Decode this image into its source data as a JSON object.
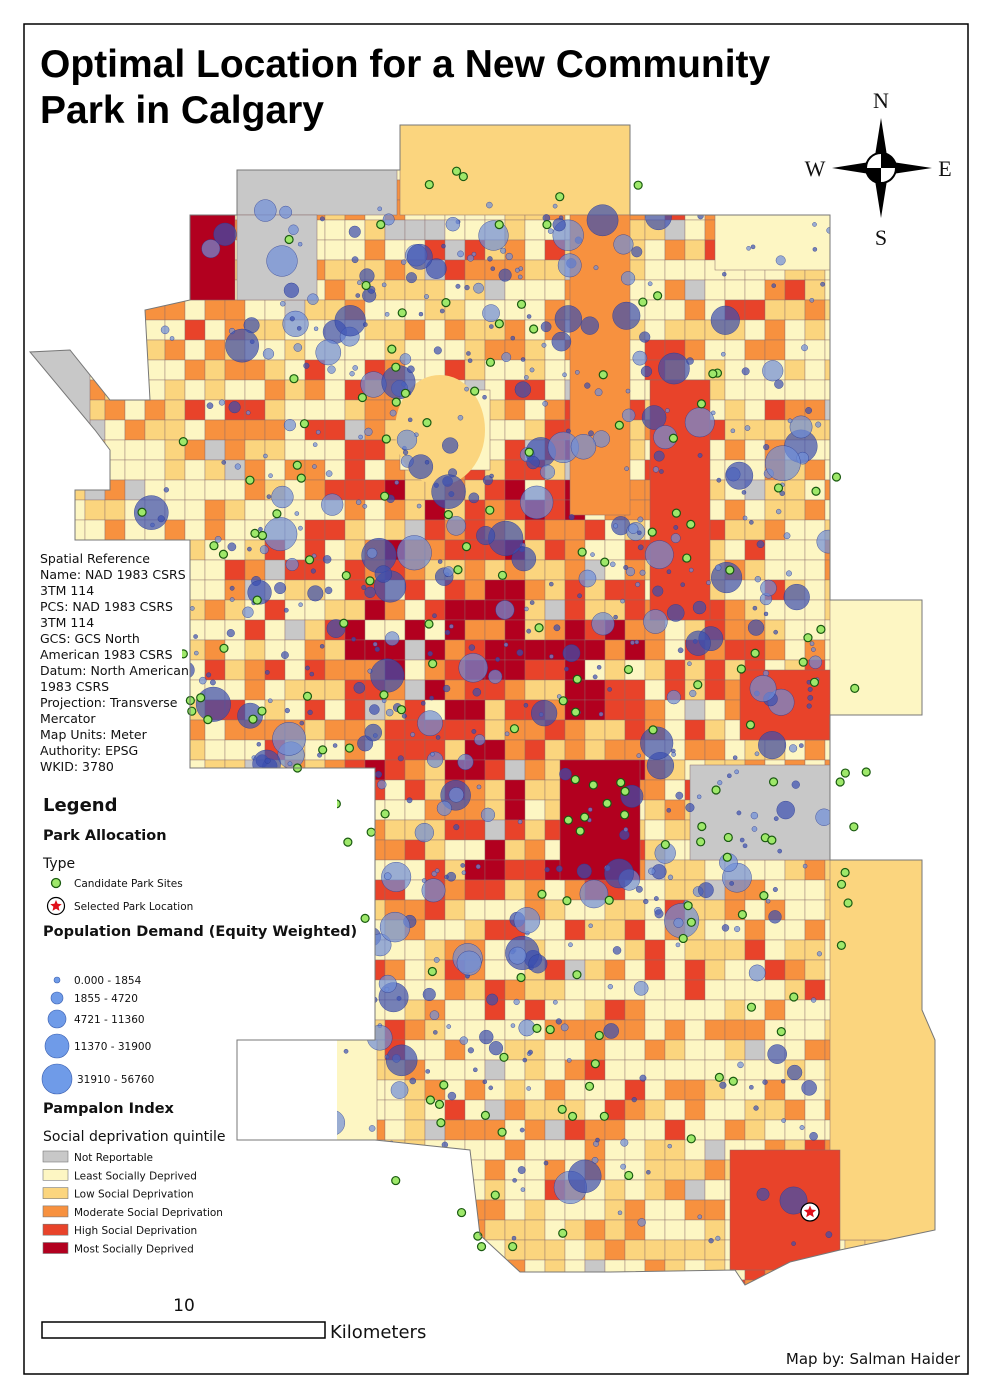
{
  "title": "Optimal Location for a New Community Park in Calgary",
  "compass": {
    "north": "N",
    "east": "E",
    "south": "S",
    "west": "W"
  },
  "spatial_reference": [
    "Spatial Reference",
    "Name: NAD 1983 CSRS",
    "3TM 114",
    "PCS: NAD 1983 CSRS",
    "3TM 114",
    "GCS: GCS North",
    "American 1983 CSRS",
    "Datum: North American",
    "1983 CSRS",
    "Projection: Transverse",
    "Mercator",
    "Map Units: Meter",
    "Authority: EPSG",
    "WKID: 3780"
  ],
  "legend": {
    "title": "Legend",
    "park_allocation": {
      "title": "Park Allocation",
      "subtitle": "Type",
      "items": [
        "Candidate Park Sites",
        "Selected Park Location"
      ]
    },
    "population_demand": {
      "title": "Population Demand (Equity Weighted)",
      "items": [
        "0.000 - 1854",
        "1855 - 4720",
        "4721 - 11360",
        "11370 - 31900",
        "31910 - 56760"
      ]
    },
    "pampalon": {
      "title": "Pampalon Index",
      "subtitle": "Social deprivation quintile",
      "items": [
        {
          "label": "Not Reportable",
          "color": "#c8c8c8"
        },
        {
          "label": "Least Socially Deprived",
          "color": "#fdf6c3"
        },
        {
          "label": "Low Social Deprivation",
          "color": "#fbd57e"
        },
        {
          "label": "Moderate Social Deprivation",
          "color": "#f7913f"
        },
        {
          "label": "High Social Deprivation",
          "color": "#e8432a"
        },
        {
          "label": "Most Socially Deprived",
          "color": "#b2001f"
        }
      ]
    }
  },
  "scale_bar": {
    "distance": 10,
    "unit": "Kilometers"
  },
  "credit": "Map by: Salman Haider"
}
